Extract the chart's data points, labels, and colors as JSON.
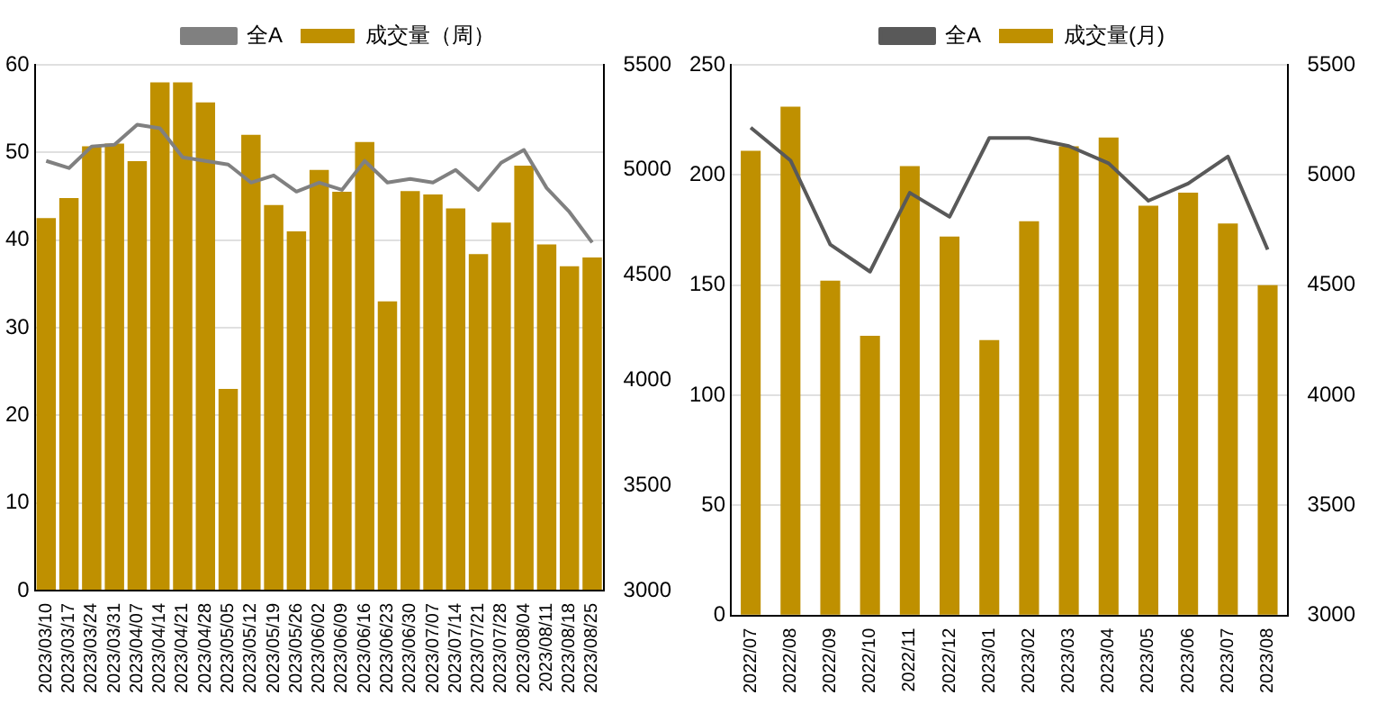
{
  "chart_data": [
    {
      "type": "bar",
      "categories": [
        "2023/03/10",
        "2023/03/17",
        "2023/03/24",
        "2023/03/31",
        "2023/04/07",
        "2023/04/14",
        "2023/04/21",
        "2023/04/28",
        "2023/05/05",
        "2023/05/12",
        "2023/05/19",
        "2023/05/26",
        "2023/06/02",
        "2023/06/09",
        "2023/06/16",
        "2023/06/23",
        "2023/06/30",
        "2023/07/07",
        "2023/07/14",
        "2023/07/21",
        "2023/07/28",
        "2023/08/04",
        "2023/08/11",
        "2023/08/18",
        "2023/08/25"
      ],
      "series": [
        {
          "name": "成交量（周）",
          "color": "#bf9000",
          "values": [
            42.5,
            44.8,
            50.7,
            51,
            49,
            58,
            58,
            55.7,
            23,
            52,
            44,
            41,
            48,
            45.5,
            51.2,
            33,
            45.6,
            45.2,
            43.6,
            38.4,
            42,
            48.5,
            39.5,
            37,
            38
          ]
        },
        {
          "name": "全A",
          "type": "line",
          "axis": "y2",
          "color": "#808080",
          "values": [
            5043,
            5009,
            5112,
            5120,
            5215,
            5198,
            5060,
            5043,
            5026,
            4940,
            4974,
            4897,
            4940,
            4905,
            5043,
            4940,
            4957,
            4940,
            5000,
            4905,
            5034,
            5095,
            4914,
            4800,
            4655
          ]
        }
      ],
      "ylim": [
        0,
        60
      ],
      "yticks": [
        0,
        10,
        20,
        30,
        40,
        50,
        60
      ],
      "y2lim": [
        3000,
        5500
      ],
      "y2ticks": [
        3000,
        3500,
        4000,
        4500,
        5000,
        5500
      ],
      "grid": "y",
      "legend": "top"
    },
    {
      "type": "bar",
      "categories": [
        "2022/07",
        "2022/08",
        "2022/09",
        "2022/10",
        "2022/11",
        "2022/12",
        "2023/01",
        "2023/02",
        "2023/03",
        "2023/04",
        "2023/05",
        "2023/06",
        "2023/07",
        "2023/08"
      ],
      "series": [
        {
          "name": "成交量(月)",
          "color": "#bf9000",
          "values": [
            211,
            231,
            152,
            127,
            204,
            172,
            125,
            179,
            213,
            217,
            186,
            192,
            178,
            150
          ]
        },
        {
          "name": "全A",
          "type": "line",
          "axis": "y2",
          "color": "#595959",
          "values": [
            5215,
            5066,
            4684,
            4561,
            4919,
            4810,
            5168,
            5168,
            5131,
            5053,
            4883,
            4961,
            5084,
            4661
          ]
        }
      ],
      "ylim": [
        0,
        250
      ],
      "yticks": [
        0,
        50,
        100,
        150,
        200,
        250
      ],
      "y2lim": [
        3000,
        5500
      ],
      "y2ticks": [
        3000,
        3500,
        4000,
        4500,
        5000,
        5500
      ],
      "grid": "y",
      "legend": "top"
    }
  ]
}
